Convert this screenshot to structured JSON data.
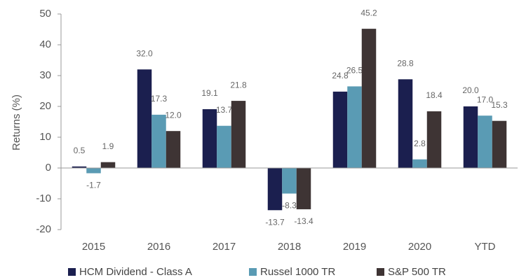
{
  "chart_data": {
    "type": "bar",
    "y_axis_label": "Returns (%)",
    "categories": [
      "2015",
      "2016",
      "2017",
      "2018",
      "2019",
      "2020",
      "YTD"
    ],
    "series": [
      {
        "name": "HCM Dividend - Class A",
        "color": "#1b1f4f",
        "values": [
          0.5,
          32.0,
          19.1,
          -13.7,
          24.8,
          28.8,
          20.0
        ],
        "value_labels": [
          "0.5",
          "32.0",
          "19.1",
          "-13.7",
          "24.8",
          "28.8",
          "20.0"
        ]
      },
      {
        "name": "Russel 1000 TR",
        "color": "#5a9bb4",
        "values": [
          -1.7,
          17.3,
          13.7,
          -8.3,
          26.5,
          2.8,
          17.0
        ],
        "value_labels": [
          "-1.7",
          "17.3",
          "13.7",
          "-8.3",
          "26.5",
          "2.8",
          "17.0"
        ]
      },
      {
        "name": "S&P 500 TR",
        "color": "#3e3434",
        "values": [
          1.9,
          12.0,
          21.8,
          -13.4,
          45.2,
          18.4,
          15.3
        ],
        "value_labels": [
          "1.9",
          "12.0",
          "21.8",
          "-13.4",
          "45.2",
          "18.4",
          "15.3"
        ]
      }
    ],
    "ylim": [
      -20,
      50
    ],
    "yticks": [
      -20,
      -10,
      0,
      10,
      20,
      30,
      40,
      50
    ],
    "grid": false,
    "legend": "bottom"
  }
}
